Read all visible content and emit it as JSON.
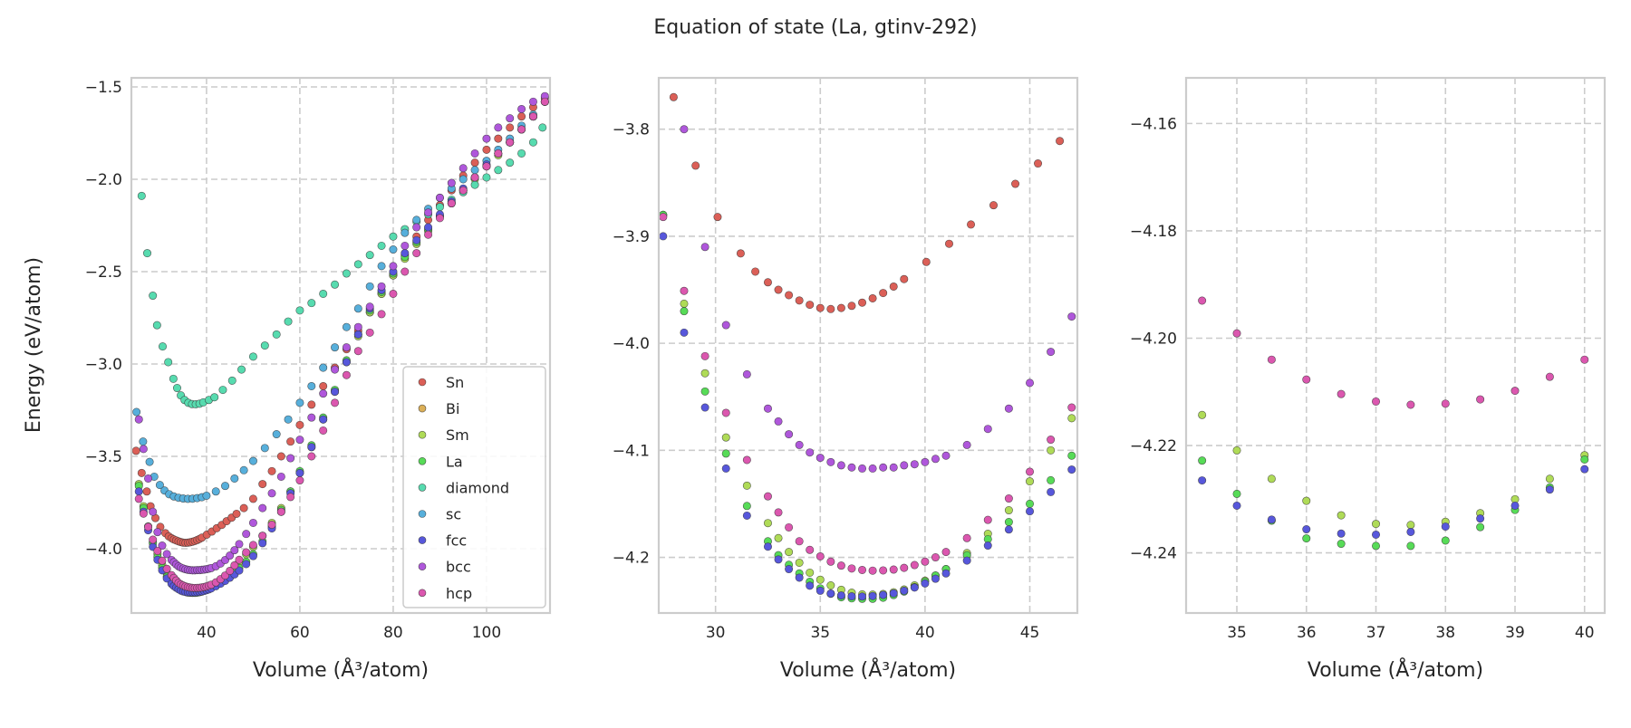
{
  "chart_data": {
    "type": "scatter",
    "title": "Equation of state (La, gtinv-292)",
    "ylabel": "Energy (eV/atom)",
    "grid": true,
    "legend": {
      "placement": "lower right of first panel"
    },
    "panels": [
      {
        "xlabel": "Volume (Å³/atom)",
        "xlim": [
          23.9,
          113.6
        ],
        "ylim": [
          -4.348,
          -1.451
        ],
        "xticks": [
          {
            "value": 40,
            "label": "40"
          },
          {
            "value": 60,
            "label": "60"
          },
          {
            "value": 80,
            "label": "80"
          },
          {
            "value": 100,
            "label": "100"
          }
        ],
        "yticks": [
          {
            "value": -1.5,
            "label": "−1.5"
          },
          {
            "value": -2.0,
            "label": "−2.0"
          },
          {
            "value": -2.5,
            "label": "−2.5"
          },
          {
            "value": -3.0,
            "label": "−3.0"
          },
          {
            "value": -3.5,
            "label": "−3.5"
          },
          {
            "value": -4.0,
            "label": "−4.0"
          }
        ]
      },
      {
        "xlabel": "Volume (Å³/atom)",
        "xlim": [
          27.29,
          47.27
        ],
        "ylim": [
          -4.252,
          -3.752
        ],
        "xticks": [
          {
            "value": 30,
            "label": "30"
          },
          {
            "value": 35,
            "label": "35"
          },
          {
            "value": 40,
            "label": "40"
          },
          {
            "value": 45,
            "label": "45"
          }
        ],
        "yticks": [
          {
            "value": -3.8,
            "label": "−3.8"
          },
          {
            "value": -3.9,
            "label": "−3.9"
          },
          {
            "value": -4.0,
            "label": "−4.0"
          },
          {
            "value": -4.1,
            "label": "−4.1"
          },
          {
            "value": -4.2,
            "label": "−4.2"
          }
        ]
      },
      {
        "xlabel": "Volume (Å³/atom)",
        "xlim": [
          34.27,
          40.29
        ],
        "ylim": [
          -4.2512,
          -4.1515
        ],
        "xticks": [
          {
            "value": 35,
            "label": "35"
          },
          {
            "value": 36,
            "label": "36"
          },
          {
            "value": 37,
            "label": "37"
          },
          {
            "value": 38,
            "label": "38"
          },
          {
            "value": 39,
            "label": "39"
          },
          {
            "value": 40,
            "label": "40"
          }
        ],
        "yticks": [
          {
            "value": -4.16,
            "label": "−4.16"
          },
          {
            "value": -4.18,
            "label": "−4.18"
          },
          {
            "value": -4.2,
            "label": "−4.20"
          },
          {
            "value": -4.22,
            "label": "−4.22"
          },
          {
            "value": -4.24,
            "label": "−4.24"
          }
        ]
      }
    ],
    "series": [
      {
        "name": "Sn",
        "color": "#db5f57",
        "x": [
          24.9,
          26.1,
          27.2,
          28.0,
          29.05,
          30.1,
          31.2,
          31.9,
          32.5,
          33,
          33.5,
          34,
          34.5,
          35,
          35.5,
          36,
          36.5,
          37,
          37.5,
          38,
          38.5,
          39,
          40.06,
          41.15,
          42.19,
          43.27,
          44.31,
          45.39,
          46.43,
          48,
          50,
          52,
          54,
          56,
          58,
          60,
          62.5,
          65,
          67.5,
          70,
          72.5,
          75,
          77.5,
          80,
          82.5,
          85,
          87.5,
          90,
          92.5,
          95,
          97.5,
          100,
          102.5,
          105,
          107.5,
          110,
          112.5
        ],
        "y": [
          -3.47,
          -3.59,
          -3.69,
          -3.77,
          -3.834,
          -3.882,
          -3.916,
          -3.933,
          -3.943,
          -3.95,
          -3.955,
          -3.96,
          -3.964,
          -3.967,
          -3.968,
          -3.967,
          -3.965,
          -3.962,
          -3.958,
          -3.953,
          -3.947,
          -3.94,
          -3.924,
          -3.907,
          -3.889,
          -3.871,
          -3.851,
          -3.832,
          -3.811,
          -3.78,
          -3.73,
          -3.65,
          -3.58,
          -3.5,
          -3.42,
          -3.33,
          -3.22,
          -3.12,
          -3.02,
          -2.92,
          -2.82,
          -2.72,
          -2.62,
          -2.52,
          -2.41,
          -2.31,
          -2.22,
          -2.14,
          -2.06,
          -1.98,
          -1.91,
          -1.84,
          -1.78,
          -1.72,
          -1.66,
          -1.61,
          -1.56
        ]
      },
      {
        "name": "Bi",
        "color": "#dbaf57",
        "x": [],
        "y": []
      },
      {
        "name": "Sm",
        "color": "#afdb57",
        "x": [
          25.5,
          26.5,
          27.5,
          28.5,
          29.5,
          30.5,
          31.5,
          32.5,
          33,
          33.5,
          34,
          34.5,
          35,
          35.5,
          36,
          36.5,
          37,
          37.5,
          38,
          38.5,
          39,
          39.5,
          40,
          40.5,
          41,
          42,
          43,
          44,
          45,
          46,
          47,
          48.5,
          50,
          52,
          54,
          56,
          58,
          60,
          62.5,
          65,
          67.5,
          70,
          72.5,
          75,
          77.5,
          80,
          82.5,
          85,
          87.5,
          90,
          92.5,
          95,
          97.5,
          100,
          102.5,
          105,
          107.5,
          110,
          112.5
        ],
        "y": [
          -3.65,
          -3.77,
          -3.88,
          -3.963,
          -4.028,
          -4.088,
          -4.133,
          -4.168,
          -4.182,
          -4.195,
          -4.205,
          -4.2143,
          -4.2209,
          -4.2262,
          -4.2303,
          -4.233,
          -4.2346,
          -4.2348,
          -4.2342,
          -4.2326,
          -4.23,
          -4.2262,
          -4.2218,
          -4.217,
          -4.211,
          -4.196,
          -4.178,
          -4.156,
          -4.129,
          -4.1,
          -4.07,
          -4.03,
          -3.99,
          -3.93,
          -3.86,
          -3.78,
          -3.69,
          -3.59,
          -3.45,
          -3.3,
          -3.15,
          -2.99,
          -2.85,
          -2.72,
          -2.62,
          -2.52,
          -2.43,
          -2.35,
          -2.28,
          -2.2,
          -2.13,
          -2.06,
          -2.0,
          -1.93,
          -1.87,
          -1.8,
          -1.73,
          -1.66,
          -1.58
        ]
      },
      {
        "name": "La",
        "color": "#57db57",
        "x": [
          25.5,
          26.5,
          27.5,
          28.5,
          29.5,
          30.5,
          31.5,
          32.5,
          33,
          33.5,
          34,
          34.5,
          35,
          35.5,
          36,
          36.5,
          37,
          37.5,
          38,
          38.5,
          39,
          39.5,
          40,
          40.5,
          41,
          42,
          43,
          44,
          45,
          46,
          47,
          48.5,
          50,
          52,
          54,
          56,
          58,
          60,
          62.5,
          65,
          67.5,
          70,
          72.5,
          75,
          77.5,
          80,
          82.5,
          85,
          87.5,
          90,
          92.5,
          95,
          97.5,
          100,
          102.5,
          105,
          107.5,
          110,
          112.5
        ],
        "y": [
          -3.66,
          -3.78,
          -3.88,
          -3.97,
          -4.045,
          -4.103,
          -4.152,
          -4.185,
          -4.198,
          -4.207,
          -4.215,
          -4.2228,
          -4.229,
          -4.234,
          -4.2373,
          -4.2383,
          -4.2387,
          -4.2387,
          -4.2377,
          -4.2352,
          -4.232,
          -4.2278,
          -4.2226,
          -4.217,
          -4.211,
          -4.198,
          -4.183,
          -4.167,
          -4.15,
          -4.128,
          -4.105,
          -4.07,
          -4.03,
          -3.96,
          -3.88,
          -3.79,
          -3.69,
          -3.58,
          -3.44,
          -3.29,
          -3.14,
          -2.98,
          -2.84,
          -2.71,
          -2.61,
          -2.51,
          -2.42,
          -2.34,
          -2.27,
          -2.2,
          -2.13,
          -2.06,
          -1.99,
          -1.93,
          -1.86,
          -1.8,
          -1.73,
          -1.66,
          -1.58
        ]
      },
      {
        "name": "diamond",
        "color": "#57dbaf",
        "x": [
          26.1,
          27.3,
          28.5,
          29.4,
          30.6,
          31.8,
          32.9,
          33.7,
          34.5,
          35.3,
          36.1,
          36.9,
          37.7,
          38.5,
          39.3,
          40.5,
          41.7,
          43.5,
          45.5,
          47.5,
          50,
          52.5,
          55,
          57.5,
          60,
          62.5,
          65,
          67.5,
          70,
          72.5,
          75,
          77.5,
          80,
          82.5,
          85,
          87.5,
          90,
          92.5,
          95,
          97.5,
          100,
          102.5,
          105,
          107.5,
          110,
          112
        ],
        "y": [
          -2.09,
          -2.4,
          -2.63,
          -2.79,
          -2.905,
          -2.99,
          -3.08,
          -3.13,
          -3.17,
          -3.195,
          -3.21,
          -3.217,
          -3.218,
          -3.215,
          -3.208,
          -3.195,
          -3.18,
          -3.14,
          -3.09,
          -3.03,
          -2.96,
          -2.9,
          -2.84,
          -2.77,
          -2.71,
          -2.67,
          -2.62,
          -2.57,
          -2.51,
          -2.46,
          -2.41,
          -2.36,
          -2.31,
          -2.27,
          -2.23,
          -2.19,
          -2.15,
          -2.11,
          -2.07,
          -2.03,
          -1.99,
          -1.95,
          -1.91,
          -1.86,
          -1.8,
          -1.72
        ]
      },
      {
        "name": "sc",
        "color": "#57afdb",
        "x": [
          25,
          26.4,
          27.8,
          28.8,
          30,
          31,
          32,
          33,
          34,
          35,
          36,
          37,
          38,
          39,
          40,
          42,
          44,
          46,
          48,
          50,
          52.5,
          55,
          57.5,
          60,
          62.5,
          65,
          67.5,
          70,
          72.5,
          75,
          77.5,
          80,
          82.5,
          85,
          87.5,
          90,
          92.5,
          95,
          97.5,
          100,
          102.5,
          105,
          107.5,
          110,
          112.5
        ],
        "y": [
          -3.26,
          -3.42,
          -3.53,
          -3.61,
          -3.655,
          -3.685,
          -3.705,
          -3.717,
          -3.724,
          -3.728,
          -3.73,
          -3.729,
          -3.726,
          -3.721,
          -3.713,
          -3.69,
          -3.66,
          -3.62,
          -3.575,
          -3.525,
          -3.455,
          -3.38,
          -3.3,
          -3.21,
          -3.12,
          -3.02,
          -2.91,
          -2.8,
          -2.7,
          -2.58,
          -2.47,
          -2.38,
          -2.29,
          -2.22,
          -2.16,
          -2.1,
          -2.05,
          -2.0,
          -1.95,
          -1.9,
          -1.84,
          -1.78,
          -1.71,
          -1.65,
          -1.58
        ]
      },
      {
        "name": "fcc",
        "color": "#5757db",
        "x": [
          25.5,
          26.5,
          27.5,
          28.5,
          29.5,
          30.5,
          31.5,
          32.5,
          33,
          33.5,
          34,
          34.5,
          35,
          35.5,
          36,
          36.5,
          37,
          37.5,
          38,
          38.5,
          39,
          39.5,
          40,
          40.5,
          41,
          42,
          43,
          44,
          45,
          46,
          47,
          48.5,
          50,
          52,
          54,
          56,
          58,
          60,
          62.5,
          65,
          67.5,
          70,
          72.5,
          75,
          77.5,
          80,
          82.5,
          85,
          87.5,
          90,
          92.5,
          95,
          97.5,
          100,
          102.5,
          105,
          107.5,
          110,
          112.5
        ],
        "y": [
          -3.69,
          -3.8,
          -3.9,
          -3.99,
          -4.06,
          -4.117,
          -4.161,
          -4.19,
          -4.202,
          -4.211,
          -4.219,
          -4.2265,
          -4.2312,
          -4.2338,
          -4.2356,
          -4.2364,
          -4.2366,
          -4.2361,
          -4.2351,
          -4.2336,
          -4.2312,
          -4.2282,
          -4.2244,
          -4.22,
          -4.215,
          -4.203,
          -4.189,
          -4.174,
          -4.157,
          -4.139,
          -4.118,
          -4.083,
          -4.04,
          -3.97,
          -3.89,
          -3.8,
          -3.7,
          -3.59,
          -3.45,
          -3.3,
          -3.15,
          -2.99,
          -2.84,
          -2.7,
          -2.6,
          -2.5,
          -2.4,
          -2.33,
          -2.26,
          -2.19,
          -2.12,
          -2.05,
          -1.99,
          -1.92,
          -1.86,
          -1.8,
          -1.73,
          -1.66,
          -1.58
        ]
      },
      {
        "name": "bcc",
        "color": "#af57db",
        "x": [
          25.5,
          26.5,
          27.5,
          28.5,
          29.5,
          30.5,
          31.5,
          32.5,
          33,
          33.5,
          34,
          34.5,
          35,
          35.5,
          36,
          36.5,
          37,
          37.5,
          38,
          38.5,
          39,
          39.5,
          40,
          40.5,
          41,
          42,
          43,
          44,
          45,
          46,
          47,
          48.5,
          50,
          52,
          54,
          56,
          58,
          60,
          62.5,
          65,
          67.5,
          70,
          72.5,
          75,
          77.5,
          80,
          82.5,
          85,
          87.5,
          90,
          92.5,
          95,
          97.5,
          100,
          102.5,
          105,
          107.5,
          110,
          112.5
        ],
        "y": [
          -3.3,
          -3.46,
          -3.62,
          -3.8,
          -3.91,
          -3.983,
          -4.029,
          -4.061,
          -4.073,
          -4.085,
          -4.095,
          -4.102,
          -4.107,
          -4.111,
          -4.114,
          -4.116,
          -4.117,
          -4.117,
          -4.116,
          -4.116,
          -4.114,
          -4.113,
          -4.111,
          -4.108,
          -4.105,
          -4.095,
          -4.08,
          -4.061,
          -4.037,
          -4.008,
          -3.975,
          -3.92,
          -3.86,
          -3.78,
          -3.7,
          -3.61,
          -3.51,
          -3.41,
          -3.29,
          -3.16,
          -3.03,
          -2.91,
          -2.8,
          -2.69,
          -2.58,
          -2.47,
          -2.36,
          -2.26,
          -2.18,
          -2.1,
          -2.02,
          -1.94,
          -1.86,
          -1.78,
          -1.72,
          -1.67,
          -1.62,
          -1.58,
          -1.55
        ]
      },
      {
        "name": "hcp",
        "color": "#db57af",
        "x": [
          25.5,
          26.5,
          27.5,
          28.5,
          29.5,
          30.5,
          31.5,
          32.5,
          33,
          33.5,
          34,
          34.5,
          35,
          35.5,
          36,
          36.5,
          37,
          37.5,
          38,
          38.5,
          39,
          39.5,
          40,
          40.5,
          41,
          42,
          43,
          44,
          45,
          46,
          47,
          48.5,
          50,
          52,
          54,
          56,
          58,
          60,
          62.5,
          65,
          67.5,
          70,
          72.5,
          75,
          77.5,
          80,
          82.5,
          85,
          87.5,
          90,
          92.5,
          95,
          97.5,
          100,
          102.5,
          105,
          107.5,
          110,
          112.5
        ],
        "y": [
          -3.73,
          -3.81,
          -3.882,
          -3.951,
          -4.012,
          -4.065,
          -4.109,
          -4.143,
          -4.158,
          -4.172,
          -4.185,
          -4.193,
          -4.1991,
          -4.204,
          -4.2077,
          -4.2104,
          -4.2118,
          -4.2124,
          -4.2122,
          -4.2114,
          -4.2098,
          -4.2072,
          -4.204,
          -4.2,
          -4.195,
          -4.182,
          -4.165,
          -4.145,
          -4.12,
          -4.09,
          -4.06,
          -4.02,
          -3.98,
          -3.93,
          -3.87,
          -3.8,
          -3.72,
          -3.63,
          -3.5,
          -3.36,
          -3.21,
          -3.06,
          -2.93,
          -2.83,
          -2.73,
          -2.62,
          -2.5,
          -2.4,
          -2.3,
          -2.21,
          -2.13,
          -2.06,
          -1.99,
          -1.93,
          -1.86,
          -1.8,
          -1.73,
          -1.66,
          -1.58
        ]
      }
    ]
  }
}
